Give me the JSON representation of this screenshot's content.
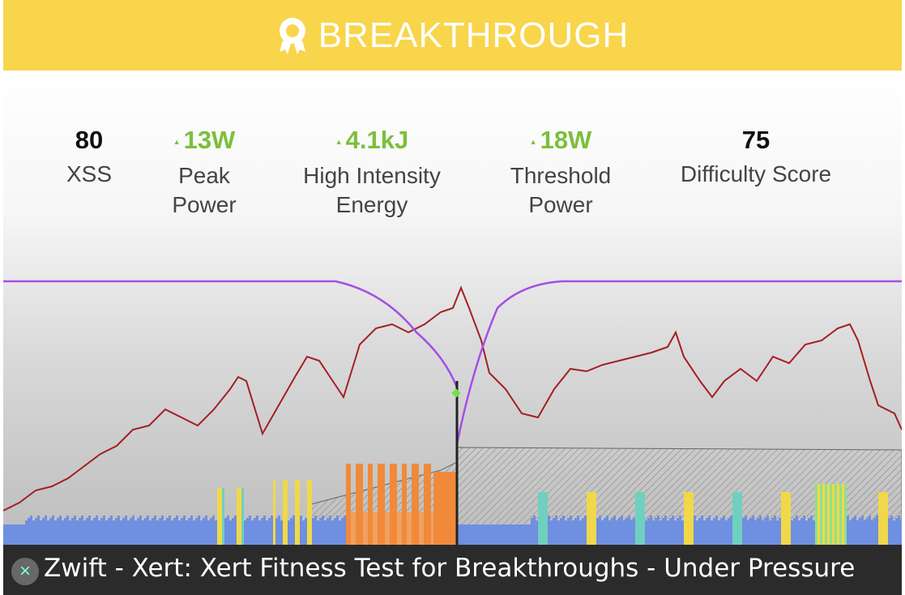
{
  "banner": {
    "title": "BREAKTHROUGH",
    "icon": "award-ribbon-icon"
  },
  "stats": [
    {
      "value": "80",
      "label": "XSS",
      "trend": "none"
    },
    {
      "value": "13W",
      "label": "Peak Power",
      "trend": "up"
    },
    {
      "value": "4.1kJ",
      "label": "High Intensity Energy",
      "trend": "up"
    },
    {
      "value": "18W",
      "label": "Threshold Power",
      "trend": "up"
    },
    {
      "value": "75",
      "label": "Difficulty Score",
      "trend": "none"
    }
  ],
  "caption": "Zwift - Xert: Xert Fitness Test for Breakthroughs - Under Pressure",
  "colors": {
    "banner": "#f8d54b",
    "up": "#7cbf3c",
    "power": "#a31f24",
    "mpa": "#a64ee8"
  }
}
